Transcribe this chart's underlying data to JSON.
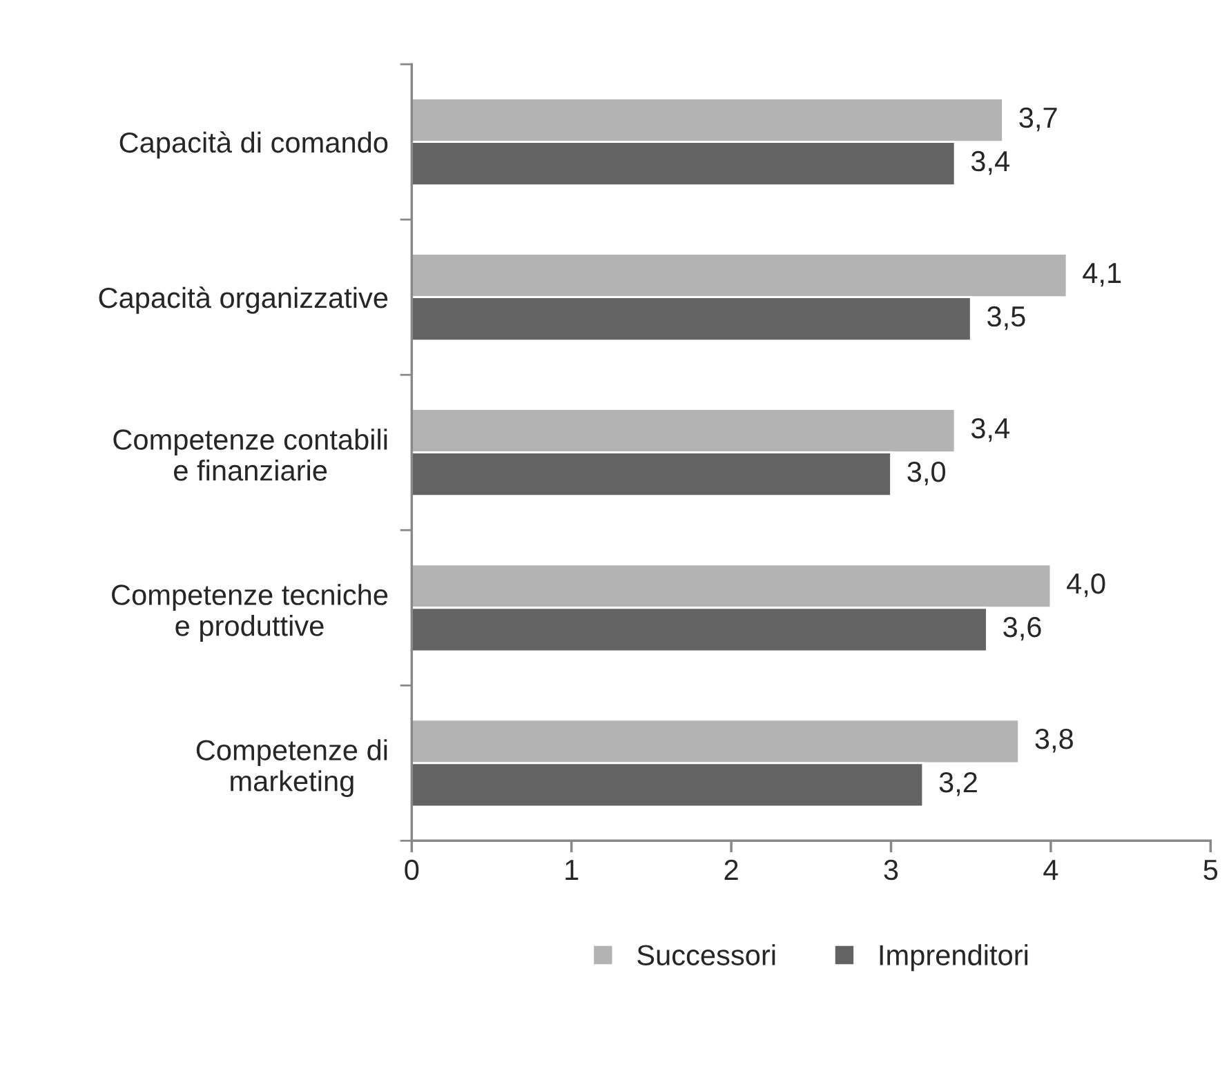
{
  "chart_data": {
    "type": "bar",
    "orientation": "horizontal",
    "categories": [
      "Capacità di comando",
      "Capacità organizzative",
      "Competenze contabili\ne finanziarie",
      "Competenze tecniche\ne produttive",
      "Competenze di\nmarketing"
    ],
    "series": [
      {
        "name": "Successori",
        "color": "#b3b3b3",
        "values": [
          3.7,
          4.1,
          3.4,
          4.0,
          3.8
        ],
        "value_labels": [
          "3,7",
          "4,1",
          "3,4",
          "4,0",
          "3,8"
        ]
      },
      {
        "name": "Imprenditori",
        "color": "#636363",
        "values": [
          3.4,
          3.5,
          3.0,
          3.6,
          3.2
        ],
        "value_labels": [
          "3,4",
          "3,5",
          "3,0",
          "3,6",
          "3,2"
        ]
      }
    ],
    "xlim": [
      0,
      5
    ],
    "xticks": [
      0,
      1,
      2,
      3,
      4,
      5
    ],
    "grid": false,
    "legend": "bottom"
  }
}
